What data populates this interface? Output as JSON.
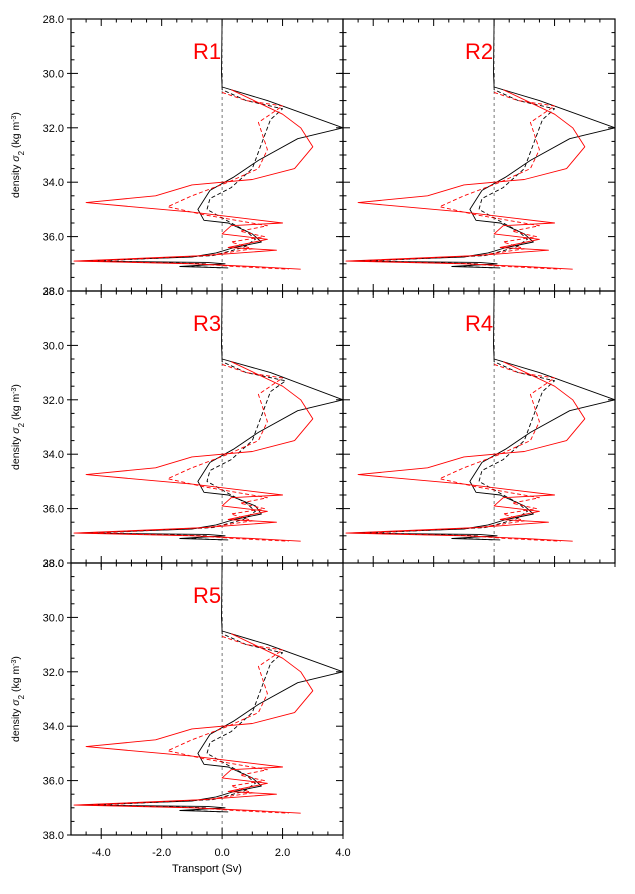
{
  "figure": {
    "xlabel": "Transport (Sv)",
    "ylabel_prefix": "density ",
    "ylabel_sigma": "σ",
    "ylabel_sub": "2",
    "ylabel_units_open": " (kg m",
    "ylabel_units_sup": "-3",
    "ylabel_units_close": ")",
    "xticks": [
      "-4.0",
      "-2.0",
      "0.0",
      "2.0",
      "4.0"
    ],
    "yticks": [
      "28.0",
      "30.0",
      "32.0",
      "34.0",
      "36.0",
      "38.0"
    ],
    "colors": {
      "black": "#000000",
      "red": "#ff0000",
      "label": "#ff0000",
      "zero_line": "#555555"
    }
  },
  "chart_data": [
    {
      "type": "line",
      "title": "R1",
      "xlim": [
        -5,
        4
      ],
      "ylim": [
        38,
        28
      ],
      "ylabel": "density σ2 (kg m-3)",
      "series": [
        {
          "style": "solid",
          "color": "black",
          "x": [
            0.0,
            -0.02,
            0.0,
            1.5,
            4.0,
            2.5,
            1.2,
            0.4,
            -0.4,
            -0.8,
            -0.6,
            0.2,
            1.0,
            1.3,
            0.4,
            -0.2,
            -1.0,
            -4.8,
            -0.5,
            0.1,
            -1.4,
            0.2
          ],
          "y": [
            28.0,
            30.0,
            30.5,
            31.0,
            32.0,
            32.4,
            33.2,
            33.8,
            34.3,
            35.0,
            35.4,
            35.5,
            35.9,
            36.2,
            36.4,
            36.6,
            36.75,
            36.9,
            36.95,
            37.0,
            37.1,
            37.15
          ]
        },
        {
          "style": "dashed",
          "color": "black",
          "x": [
            0.0,
            0.0,
            0.8,
            2.0,
            1.6,
            1.3,
            1.0,
            0.3,
            -0.4,
            -0.5,
            0.3,
            0.8,
            1.1,
            0.7,
            -0.3,
            -4.2,
            -0.5,
            -1.0,
            0.0
          ],
          "y": [
            30.0,
            30.6,
            31.0,
            31.3,
            31.7,
            32.6,
            33.5,
            34.2,
            34.6,
            35.0,
            35.5,
            35.8,
            36.1,
            36.4,
            36.7,
            36.9,
            37.0,
            37.1,
            37.15
          ]
        },
        {
          "style": "solid",
          "color": "red",
          "x": [
            0.3,
            2.0,
            2.6,
            3.0,
            2.4,
            1.0,
            -1.0,
            -2.2,
            -4.5,
            -1.0,
            2.0,
            0.3,
            0.0,
            1.5,
            0.2,
            1.8,
            -0.6,
            -4.9,
            -1.0,
            1.0,
            2.6
          ],
          "y": [
            30.6,
            31.5,
            32.0,
            32.7,
            33.5,
            33.9,
            34.1,
            34.5,
            34.75,
            35.1,
            35.5,
            35.6,
            35.9,
            36.1,
            36.4,
            36.5,
            36.7,
            36.9,
            37.0,
            37.1,
            37.2
          ]
        },
        {
          "style": "dashed",
          "color": "red",
          "x": [
            0.0,
            0.8,
            2.0,
            1.2,
            1.5,
            1.2,
            0.2,
            -1.0,
            -1.8,
            -0.6,
            1.5,
            0.6,
            1.4,
            0.3,
            1.0,
            -0.5,
            -4.3,
            -0.8,
            0.4,
            2.2
          ],
          "y": [
            30.7,
            31.0,
            31.2,
            31.8,
            32.8,
            33.5,
            34.0,
            34.5,
            34.9,
            35.2,
            35.6,
            35.8,
            36.0,
            36.2,
            36.45,
            36.7,
            36.9,
            37.0,
            37.1,
            37.2
          ]
        }
      ]
    },
    {
      "type": "line",
      "title": "R2",
      "xlim": [
        -5,
        4
      ],
      "ylim": [
        38,
        28
      ],
      "series": [
        {
          "style": "solid",
          "color": "black",
          "x": [
            0.0,
            -0.02,
            0.0,
            1.5,
            4.0,
            2.5,
            1.2,
            0.4,
            -0.4,
            -0.8,
            -0.6,
            0.2,
            1.0,
            1.3,
            0.4,
            -0.2,
            -1.0,
            -4.8,
            -0.5,
            0.1,
            -1.4,
            0.2
          ],
          "y": [
            28.0,
            30.0,
            30.5,
            31.0,
            32.0,
            32.4,
            33.2,
            33.8,
            34.3,
            35.0,
            35.4,
            35.5,
            35.9,
            36.2,
            36.4,
            36.6,
            36.75,
            36.9,
            36.95,
            37.0,
            37.1,
            37.15
          ]
        },
        {
          "style": "dashed",
          "color": "black",
          "x": [
            0.0,
            0.0,
            0.8,
            2.0,
            1.6,
            1.3,
            1.0,
            0.3,
            -0.4,
            -0.5,
            0.3,
            0.8,
            1.1,
            0.7,
            -0.3,
            -4.2,
            -0.5,
            -1.0,
            0.0
          ],
          "y": [
            30.0,
            30.6,
            31.0,
            31.3,
            31.7,
            32.6,
            33.5,
            34.2,
            34.6,
            35.0,
            35.5,
            35.8,
            36.1,
            36.4,
            36.7,
            36.9,
            37.0,
            37.1,
            37.15
          ]
        },
        {
          "style": "solid",
          "color": "red",
          "x": [
            0.3,
            2.0,
            2.6,
            3.0,
            2.4,
            1.0,
            -1.0,
            -2.2,
            -4.5,
            -1.0,
            2.0,
            0.3,
            0.0,
            1.5,
            0.2,
            1.8,
            -0.6,
            -4.9,
            -1.0,
            1.0,
            2.6
          ],
          "y": [
            30.6,
            31.5,
            32.0,
            32.7,
            33.5,
            33.9,
            34.1,
            34.5,
            34.75,
            35.1,
            35.5,
            35.6,
            35.9,
            36.1,
            36.4,
            36.5,
            36.7,
            36.9,
            37.0,
            37.1,
            37.2
          ]
        },
        {
          "style": "dashed",
          "color": "red",
          "x": [
            0.0,
            0.8,
            2.0,
            1.2,
            1.5,
            1.2,
            0.2,
            -1.0,
            -1.8,
            -0.6,
            1.5,
            0.6,
            1.4,
            0.3,
            1.0,
            -0.5,
            -4.3,
            -0.8,
            0.4,
            2.2
          ],
          "y": [
            30.7,
            31.0,
            31.2,
            31.8,
            32.8,
            33.5,
            34.0,
            34.5,
            34.9,
            35.2,
            35.6,
            35.8,
            36.0,
            36.2,
            36.45,
            36.7,
            36.9,
            37.0,
            37.1,
            37.2
          ]
        }
      ]
    },
    {
      "type": "line",
      "title": "R3",
      "xlim": [
        -5,
        4
      ],
      "ylim": [
        38,
        28
      ],
      "ylabel": "density σ2 (kg m-3)",
      "series": [
        {
          "style": "solid",
          "color": "black",
          "x": [
            0.0,
            -0.02,
            0.0,
            1.6,
            4.0,
            2.5,
            1.2,
            0.4,
            -0.4,
            -0.8,
            -0.6,
            0.2,
            1.1,
            1.3,
            0.4,
            -0.2,
            -1.0,
            -4.8,
            -0.5,
            0.1,
            -1.4,
            0.2
          ],
          "y": [
            28.0,
            30.0,
            30.5,
            31.0,
            32.0,
            32.4,
            33.2,
            33.8,
            34.3,
            35.0,
            35.4,
            35.5,
            35.9,
            36.2,
            36.4,
            36.6,
            36.75,
            36.9,
            36.95,
            37.0,
            37.1,
            37.15
          ]
        },
        {
          "style": "dashed",
          "color": "black",
          "x": [
            0.0,
            0.0,
            0.8,
            2.1,
            1.6,
            1.3,
            1.0,
            0.3,
            -0.4,
            -0.5,
            0.3,
            0.8,
            1.1,
            0.7,
            -0.3,
            -4.2,
            -0.5,
            -1.0,
            0.0
          ],
          "y": [
            30.0,
            30.6,
            31.0,
            31.3,
            31.7,
            32.6,
            33.5,
            34.2,
            34.6,
            35.0,
            35.5,
            35.8,
            36.1,
            36.4,
            36.7,
            36.9,
            37.0,
            37.1,
            37.15
          ]
        },
        {
          "style": "solid",
          "color": "red",
          "x": [
            0.3,
            2.0,
            2.6,
            3.0,
            2.4,
            1.0,
            -1.0,
            -2.2,
            -4.5,
            -1.0,
            2.0,
            0.3,
            0.0,
            1.5,
            0.2,
            1.8,
            -0.6,
            -4.9,
            -1.0,
            1.0,
            2.6
          ],
          "y": [
            30.6,
            31.5,
            32.0,
            32.7,
            33.5,
            33.9,
            34.1,
            34.5,
            34.75,
            35.1,
            35.5,
            35.6,
            35.9,
            36.1,
            36.4,
            36.5,
            36.7,
            36.9,
            37.0,
            37.1,
            37.2
          ]
        },
        {
          "style": "dashed",
          "color": "red",
          "x": [
            0.0,
            0.8,
            2.0,
            1.2,
            1.5,
            1.2,
            0.2,
            -1.0,
            -1.8,
            -0.6,
            1.5,
            0.6,
            1.4,
            0.3,
            1.0,
            -0.5,
            -4.3,
            -0.8,
            0.4,
            2.2
          ],
          "y": [
            30.7,
            31.0,
            31.2,
            31.8,
            32.8,
            33.5,
            34.0,
            34.5,
            34.9,
            35.2,
            35.6,
            35.8,
            36.0,
            36.2,
            36.45,
            36.7,
            36.9,
            37.0,
            37.1,
            37.2
          ]
        }
      ]
    },
    {
      "type": "line",
      "title": "R4",
      "xlim": [
        -5,
        4
      ],
      "ylim": [
        38,
        28
      ],
      "series": [
        {
          "style": "solid",
          "color": "black",
          "x": [
            0.0,
            -0.02,
            0.0,
            1.5,
            4.0,
            2.5,
            1.2,
            0.4,
            -0.4,
            -0.8,
            -0.6,
            0.2,
            1.0,
            1.3,
            0.4,
            -0.2,
            -1.0,
            -4.8,
            -0.5,
            0.1,
            -1.4,
            0.2
          ],
          "y": [
            28.0,
            30.0,
            30.5,
            31.0,
            32.0,
            32.4,
            33.2,
            33.8,
            34.3,
            35.0,
            35.4,
            35.5,
            35.9,
            36.2,
            36.4,
            36.6,
            36.75,
            36.9,
            36.95,
            37.0,
            37.1,
            37.15
          ]
        },
        {
          "style": "dashed",
          "color": "black",
          "x": [
            0.0,
            0.0,
            0.8,
            2.0,
            1.6,
            1.3,
            1.0,
            0.3,
            -0.4,
            -0.5,
            0.3,
            0.8,
            1.1,
            0.7,
            -0.3,
            -4.2,
            -0.5,
            -1.0,
            0.0
          ],
          "y": [
            30.0,
            30.6,
            31.0,
            31.3,
            31.7,
            32.6,
            33.5,
            34.2,
            34.6,
            35.0,
            35.5,
            35.8,
            36.1,
            36.4,
            36.7,
            36.9,
            37.0,
            37.1,
            37.15
          ]
        },
        {
          "style": "solid",
          "color": "red",
          "x": [
            0.3,
            2.0,
            2.6,
            3.0,
            2.4,
            1.0,
            -1.0,
            -2.2,
            -4.5,
            -1.0,
            2.0,
            0.3,
            0.0,
            1.5,
            0.2,
            1.8,
            -0.6,
            -4.9,
            -1.0,
            1.0,
            2.6
          ],
          "y": [
            30.6,
            31.5,
            32.0,
            32.7,
            33.5,
            33.9,
            34.1,
            34.5,
            34.75,
            35.1,
            35.5,
            35.6,
            35.9,
            36.1,
            36.4,
            36.5,
            36.7,
            36.9,
            37.0,
            37.1,
            37.2
          ]
        },
        {
          "style": "dashed",
          "color": "red",
          "x": [
            0.0,
            0.8,
            2.0,
            1.2,
            1.5,
            1.2,
            0.2,
            -1.0,
            -1.8,
            -0.6,
            1.5,
            0.6,
            1.4,
            0.3,
            1.0,
            -0.5,
            -4.3,
            -0.8,
            0.4,
            2.2
          ],
          "y": [
            30.7,
            31.0,
            31.2,
            31.8,
            32.8,
            33.5,
            34.0,
            34.5,
            34.9,
            35.2,
            35.6,
            35.8,
            36.0,
            36.2,
            36.45,
            36.7,
            36.9,
            37.0,
            37.1,
            37.2
          ]
        }
      ]
    },
    {
      "type": "line",
      "title": "R5",
      "xlim": [
        -5,
        4
      ],
      "ylim": [
        38,
        28
      ],
      "xlabel": "Transport (Sv)",
      "ylabel": "density σ2 (kg m-3)",
      "series": [
        {
          "style": "solid",
          "color": "black",
          "x": [
            0.0,
            -0.02,
            0.0,
            1.5,
            4.0,
            2.5,
            1.2,
            0.4,
            -0.4,
            -0.8,
            -0.6,
            0.2,
            1.0,
            1.3,
            0.4,
            -0.2,
            -1.0,
            -4.8,
            -0.5,
            0.1,
            -1.4,
            0.2
          ],
          "y": [
            28.0,
            30.0,
            30.5,
            31.0,
            32.0,
            32.4,
            33.2,
            33.8,
            34.3,
            35.0,
            35.4,
            35.5,
            35.9,
            36.2,
            36.4,
            36.6,
            36.75,
            36.9,
            36.95,
            37.0,
            37.1,
            37.15
          ]
        },
        {
          "style": "dashed",
          "color": "black",
          "x": [
            0.0,
            0.0,
            0.8,
            2.0,
            1.6,
            1.3,
            1.0,
            0.3,
            -0.4,
            -0.5,
            0.3,
            0.8,
            1.1,
            0.7,
            -0.3,
            -4.2,
            -0.5,
            -1.0,
            0.0
          ],
          "y": [
            30.0,
            30.6,
            31.0,
            31.3,
            31.7,
            32.6,
            33.5,
            34.2,
            34.6,
            35.0,
            35.5,
            35.8,
            36.1,
            36.4,
            36.7,
            36.9,
            37.0,
            37.1,
            37.15
          ]
        },
        {
          "style": "solid",
          "color": "red",
          "x": [
            0.3,
            2.0,
            2.6,
            3.0,
            2.4,
            1.0,
            -1.0,
            -2.2,
            -4.5,
            -1.0,
            2.0,
            0.3,
            0.0,
            1.5,
            0.2,
            1.8,
            -0.6,
            -4.9,
            -1.0,
            1.0,
            2.6
          ],
          "y": [
            30.6,
            31.5,
            32.0,
            32.7,
            33.5,
            33.9,
            34.1,
            34.5,
            34.75,
            35.1,
            35.5,
            35.6,
            35.9,
            36.1,
            36.4,
            36.5,
            36.7,
            36.9,
            37.0,
            37.1,
            37.2
          ]
        },
        {
          "style": "dashed",
          "color": "red",
          "x": [
            0.0,
            0.8,
            2.0,
            1.2,
            1.5,
            1.2,
            0.2,
            -1.0,
            -1.8,
            -0.6,
            1.5,
            0.6,
            1.4,
            0.3,
            1.0,
            -0.5,
            -4.3,
            -0.8,
            0.4,
            2.2
          ],
          "y": [
            30.7,
            31.0,
            31.2,
            31.8,
            32.8,
            33.5,
            34.0,
            34.5,
            34.9,
            35.2,
            35.6,
            35.8,
            36.0,
            36.2,
            36.45,
            36.7,
            36.9,
            37.0,
            37.1,
            37.2
          ]
        }
      ]
    }
  ]
}
